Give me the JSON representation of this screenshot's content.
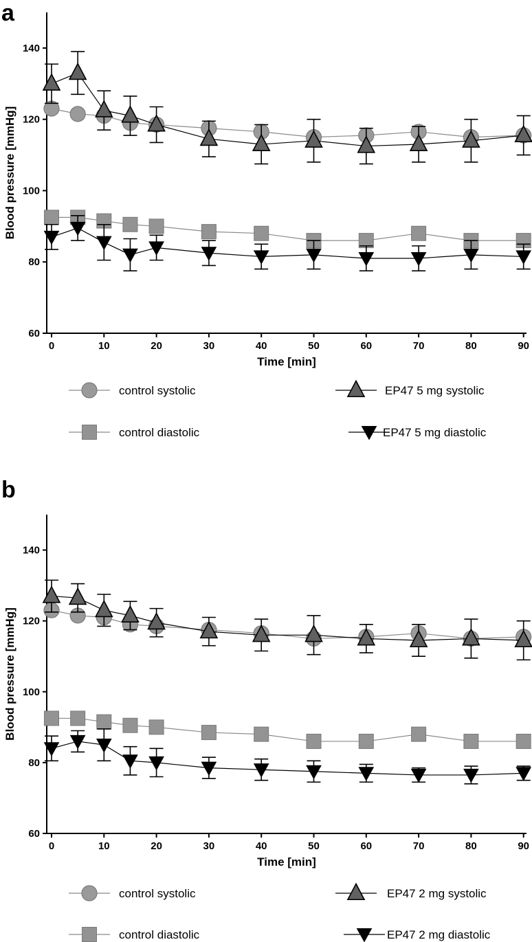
{
  "chart_data": [
    {
      "panel": "a",
      "type": "line",
      "xlabel": "Time [min]",
      "ylabel": "Blood pressure [mmHg]",
      "xticks": [
        0,
        10,
        20,
        30,
        40,
        50,
        60,
        70,
        80,
        90
      ],
      "yticks": [
        60,
        80,
        100,
        120,
        140
      ],
      "xlim": [
        -1,
        91
      ],
      "ylim": [
        60,
        150
      ],
      "x": [
        0,
        5,
        10,
        15,
        20,
        30,
        40,
        50,
        60,
        70,
        80,
        90
      ],
      "series": [
        {
          "name": "control systolic",
          "marker": "circle",
          "color": "#9a9a9a",
          "values": [
            123,
            121.5,
            121,
            119,
            118.5,
            117.5,
            116.5,
            115,
            115.5,
            116.5,
            115,
            115.5
          ],
          "errors": [
            null,
            null,
            null,
            null,
            null,
            null,
            null,
            null,
            null,
            null,
            null,
            null
          ]
        },
        {
          "name": "EP47 5 mg systolic",
          "marker": "triangle-up",
          "color": "#616161",
          "values": [
            130,
            133,
            122.5,
            121,
            118.5,
            114.5,
            113,
            114,
            112.5,
            113,
            114,
            115.5
          ],
          "errors": [
            5.5,
            6,
            5.5,
            5.5,
            5,
            5,
            5.5,
            6,
            5,
            5,
            6,
            5.5
          ]
        },
        {
          "name": "control diastolic",
          "marker": "square",
          "color": "#939393",
          "values": [
            92.5,
            92.5,
            91.5,
            90.5,
            90,
            88.5,
            88,
            86,
            86,
            88,
            86,
            86
          ],
          "errors": [
            null,
            null,
            null,
            null,
            null,
            null,
            null,
            null,
            null,
            null,
            null,
            null
          ]
        },
        {
          "name": "EP47 5 mg diastolic",
          "marker": "triangle-down",
          "color": "#000000",
          "values": [
            87,
            89.5,
            85.5,
            82,
            84,
            82.5,
            81.5,
            82,
            81,
            81,
            82,
            81.5
          ],
          "errors": [
            3.5,
            3.5,
            5,
            4.5,
            3.5,
            3.5,
            3.5,
            4,
            3.5,
            3.5,
            4,
            3.5
          ]
        }
      ]
    },
    {
      "panel": "b",
      "type": "line",
      "xlabel": "Time [min]",
      "ylabel": "Blood pressure [mmHg]",
      "xticks": [
        0,
        10,
        20,
        30,
        40,
        50,
        60,
        70,
        80,
        90
      ],
      "yticks": [
        60,
        80,
        100,
        120,
        140
      ],
      "xlim": [
        -1,
        91
      ],
      "ylim": [
        60,
        150
      ],
      "x": [
        0,
        5,
        10,
        15,
        20,
        30,
        40,
        50,
        60,
        70,
        80,
        90
      ],
      "series": [
        {
          "name": "control systolic",
          "marker": "circle",
          "color": "#9a9a9a",
          "values": [
            123,
            121.5,
            121,
            119,
            118.5,
            117.5,
            116.5,
            115,
            115.5,
            116.5,
            115,
            115.5
          ],
          "errors": [
            null,
            null,
            null,
            null,
            null,
            null,
            null,
            null,
            null,
            null,
            null,
            null
          ]
        },
        {
          "name": "EP47 2 mg systolic",
          "marker": "triangle-up",
          "color": "#616161",
          "values": [
            127,
            126.5,
            123,
            121.5,
            119.5,
            117,
            116,
            116,
            115,
            114.5,
            115,
            114.5
          ],
          "errors": [
            4.5,
            4,
            4.5,
            4,
            4,
            4,
            4.5,
            5.5,
            4,
            4.5,
            5.5,
            5.5
          ]
        },
        {
          "name": "control diastolic",
          "marker": "square",
          "color": "#939393",
          "values": [
            92.5,
            92.5,
            91.5,
            90.5,
            90,
            88.5,
            88,
            86,
            86,
            88,
            86,
            86
          ],
          "errors": [
            null,
            null,
            null,
            null,
            null,
            null,
            null,
            null,
            null,
            null,
            null,
            null
          ]
        },
        {
          "name": "EP47 2 mg diastolic",
          "marker": "triangle-down",
          "color": "#000000",
          "values": [
            84,
            86,
            85,
            80.5,
            80,
            78.5,
            78,
            77.5,
            77,
            76.5,
            76.5,
            77
          ],
          "errors": [
            3.5,
            3,
            4.5,
            4,
            4,
            3,
            3,
            3,
            2.5,
            2,
            2.5,
            2
          ]
        }
      ]
    }
  ]
}
